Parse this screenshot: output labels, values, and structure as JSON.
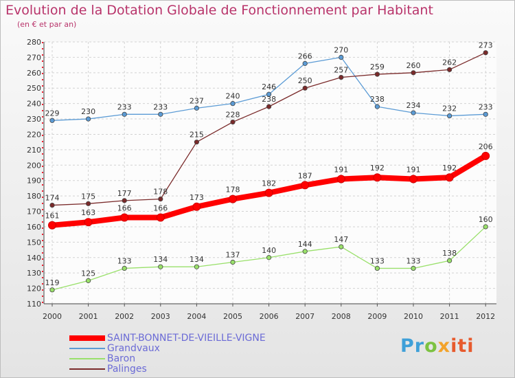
{
  "chart_data": {
    "type": "line",
    "title": "Evolution de la Dotation Globale de Fonctionnement par Habitant",
    "subtitle": "(en € et par an)",
    "xlabel": "",
    "ylabel": "",
    "ylim": [
      110,
      280
    ],
    "yticks": [
      110,
      120,
      130,
      140,
      150,
      160,
      170,
      180,
      190,
      200,
      210,
      220,
      230,
      240,
      250,
      260,
      270,
      280
    ],
    "x": [
      "2000",
      "2001",
      "2002",
      "2003",
      "2004",
      "2005",
      "2006",
      "2007",
      "2008",
      "2009",
      "2010",
      "2011",
      "2012"
    ],
    "grid": true,
    "legend_position": "bottom-left",
    "series": [
      {
        "name": "Grandvaux",
        "color": "#5b9bd5",
        "values": [
          229,
          230,
          233,
          233,
          237,
          240,
          246,
          266,
          270,
          238,
          234,
          232,
          233
        ]
      },
      {
        "name": "Baron",
        "color": "#99e06a",
        "values": [
          119,
          125,
          133,
          134,
          134,
          137,
          140,
          144,
          147,
          133,
          133,
          138,
          160
        ]
      },
      {
        "name": "Palinges",
        "color": "#7a2a2a",
        "values": [
          174,
          175,
          177,
          178,
          215,
          228,
          238,
          250,
          257,
          259,
          260,
          262,
          273
        ]
      },
      {
        "name": "SAINT-BONNET-DE-VIEILLE-VIGNE",
        "color": "#ff0000",
        "values": [
          161,
          163,
          166,
          166,
          173,
          178,
          182,
          187,
          191,
          192,
          191,
          192,
          206
        ],
        "highlight": true
      }
    ],
    "legend_order": [
      "SAINT-BONNET-DE-VIEILLE-VIGNE",
      "Grandvaux",
      "Baron",
      "Palinges"
    ]
  },
  "logo": {
    "part1": "Pr",
    "part2": "o",
    "part3": "x",
    "part4": "iti"
  }
}
